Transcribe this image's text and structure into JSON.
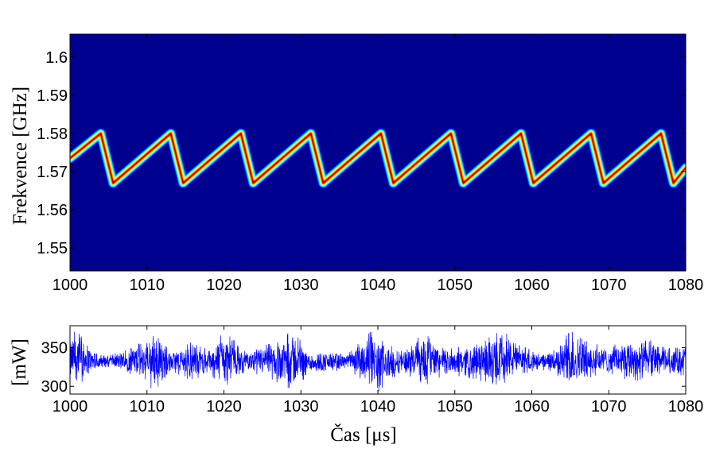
{
  "chart_data": [
    {
      "type": "heatmap",
      "title": "",
      "xlabel": "",
      "ylabel": "Frekvence [GHz]",
      "xlim": [
        1000,
        1080
      ],
      "ylim": [
        1.544,
        1.606
      ],
      "x_ticks": [
        "1000",
        "1010",
        "1020",
        "1030",
        "1040",
        "1050",
        "1060",
        "1070",
        "1080"
      ],
      "y_ticks": [
        "1.55",
        "1.56",
        "1.57",
        "1.58",
        "1.59",
        "1.6"
      ],
      "background_color": "#00008f",
      "colormap": [
        "#00008f",
        "#0000ff",
        "#00ffff",
        "#ffff00",
        "#ff0000",
        "#800000"
      ],
      "ridge": {
        "shape": "sawtooth",
        "period_us": 9.1,
        "f_min": 1.567,
        "f_max": 1.58,
        "peaks_x": [
          1004.0,
          1013.1,
          1022.2,
          1031.3,
          1040.4,
          1049.5,
          1058.6,
          1067.7,
          1076.8
        ],
        "troughs_x": [
          1005.6,
          1014.7,
          1023.8,
          1032.9,
          1042.0,
          1051.1,
          1060.2,
          1069.3,
          1078.4
        ],
        "start_point": [
          1000,
          1.5735
        ],
        "end_point": [
          1080,
          1.571
        ]
      }
    },
    {
      "type": "line",
      "title": "",
      "xlabel": "Čas [μs]",
      "ylabel": "[mW]",
      "xlim": [
        1000,
        1080
      ],
      "ylim": [
        290,
        378
      ],
      "x_ticks": [
        "1000",
        "1010",
        "1020",
        "1030",
        "1040",
        "1050",
        "1060",
        "1070",
        "1080"
      ],
      "y_ticks": [
        "300",
        "350"
      ],
      "line_color": "#0000ff",
      "series": [
        {
          "mean": 332,
          "description": "noisy power signal",
          "envelope": [
            {
              "x": 1000,
              "min": 305,
              "max": 360
            },
            {
              "x": 1001,
              "min": 300,
              "max": 378
            },
            {
              "x": 1003,
              "min": 318,
              "max": 345
            },
            {
              "x": 1005,
              "min": 325,
              "max": 340
            },
            {
              "x": 1008,
              "min": 315,
              "max": 350
            },
            {
              "x": 1011,
              "min": 294,
              "max": 372
            },
            {
              "x": 1013,
              "min": 318,
              "max": 345
            },
            {
              "x": 1016,
              "min": 306,
              "max": 360
            },
            {
              "x": 1018,
              "min": 318,
              "max": 346
            },
            {
              "x": 1020,
              "min": 296,
              "max": 372
            },
            {
              "x": 1023,
              "min": 320,
              "max": 344
            },
            {
              "x": 1026,
              "min": 308,
              "max": 358
            },
            {
              "x": 1029,
              "min": 294,
              "max": 372
            },
            {
              "x": 1031,
              "min": 316,
              "max": 346
            },
            {
              "x": 1034,
              "min": 318,
              "max": 345
            },
            {
              "x": 1036,
              "min": 322,
              "max": 342
            },
            {
              "x": 1039,
              "min": 300,
              "max": 372
            },
            {
              "x": 1040,
              "min": 292,
              "max": 362
            },
            {
              "x": 1043,
              "min": 318,
              "max": 346
            },
            {
              "x": 1046,
              "min": 300,
              "max": 370
            },
            {
              "x": 1049,
              "min": 316,
              "max": 348
            },
            {
              "x": 1052,
              "min": 310,
              "max": 356
            },
            {
              "x": 1055,
              "min": 302,
              "max": 366
            },
            {
              "x": 1056,
              "min": 300,
              "max": 376
            },
            {
              "x": 1058,
              "min": 312,
              "max": 356
            },
            {
              "x": 1061,
              "min": 322,
              "max": 342
            },
            {
              "x": 1063,
              "min": 316,
              "max": 348
            },
            {
              "x": 1065,
              "min": 296,
              "max": 372
            },
            {
              "x": 1067,
              "min": 310,
              "max": 360
            },
            {
              "x": 1070,
              "min": 316,
              "max": 350
            },
            {
              "x": 1073,
              "min": 305,
              "max": 365
            },
            {
              "x": 1076,
              "min": 310,
              "max": 358
            },
            {
              "x": 1078,
              "min": 316,
              "max": 350
            },
            {
              "x": 1080,
              "min": 310,
              "max": 358
            }
          ]
        }
      ]
    }
  ]
}
